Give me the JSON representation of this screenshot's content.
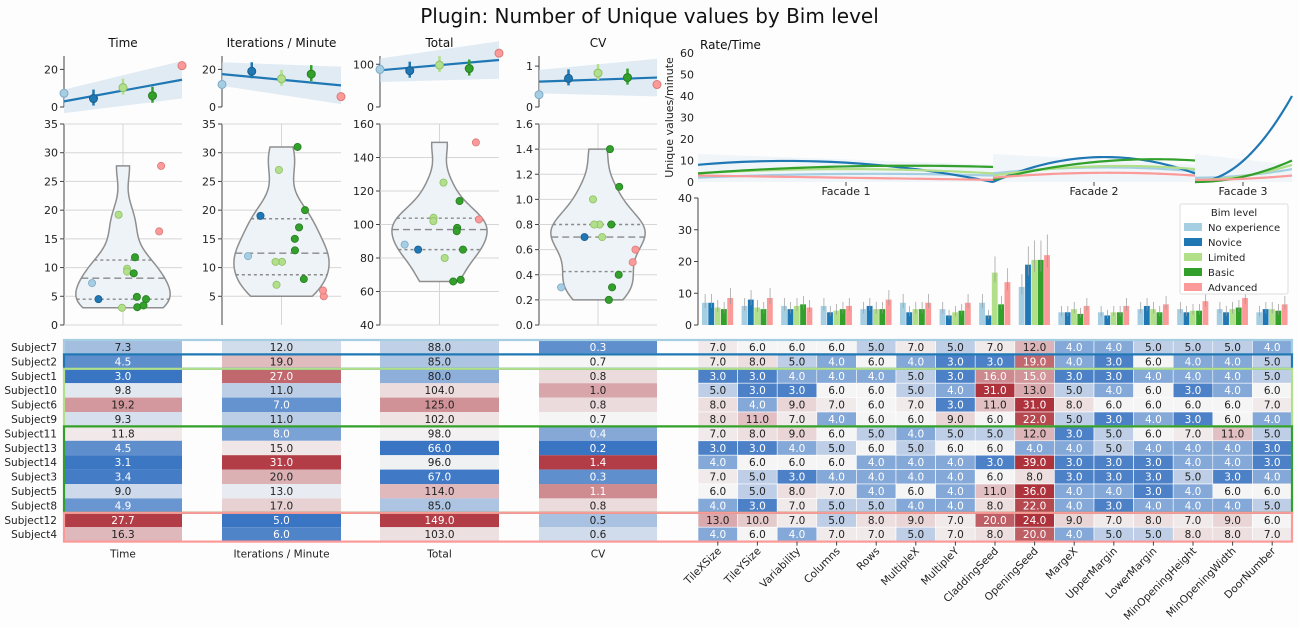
{
  "title": "Plugin: Number of Unique values by Bim level",
  "colors": {
    "No experience": "#a6cee3",
    "Novice": "#1f78b4",
    "Limited": "#b2df8a",
    "Basic": "#33a02c",
    "Advanced": "#fb9a99"
  },
  "chart_data": [
    {
      "type": "scatter",
      "name": "time-top",
      "title": "Time",
      "yticks": [
        "0",
        "20"
      ],
      "ylim": [
        0,
        25
      ],
      "means": [
        {
          "level": "No experience",
          "value": 7.3
        },
        {
          "level": "Novice",
          "value": 4.5
        },
        {
          "level": "Limited",
          "value": 10.3
        },
        {
          "level": "Basic",
          "value": 6.0
        },
        {
          "level": "Advanced",
          "value": 22
        }
      ],
      "fit": [
        3.0,
        14.5
      ]
    },
    {
      "type": "scatter",
      "name": "iter-top",
      "title": "Iterations / Minute",
      "yticks": [
        "0",
        "20"
      ],
      "ylim": [
        0,
        25
      ],
      "means": [
        {
          "level": "No experience",
          "value": 12.0
        },
        {
          "level": "Novice",
          "value": 19.0
        },
        {
          "level": "Limited",
          "value": 15.0
        },
        {
          "level": "Basic",
          "value": 17.5
        },
        {
          "level": "Advanced",
          "value": 5.5
        }
      ],
      "fit": [
        17.5,
        11.5
      ]
    },
    {
      "type": "scatter",
      "name": "total-top",
      "title": "Total",
      "yticks": [
        "0",
        "100"
      ],
      "ylim": [
        0,
        110
      ],
      "means": [
        {
          "level": "No experience",
          "value": 88
        },
        {
          "level": "Novice",
          "value": 85
        },
        {
          "level": "Limited",
          "value": 98
        },
        {
          "level": "Basic",
          "value": 90
        },
        {
          "level": "Advanced",
          "value": 126
        }
      ],
      "fit": [
        86,
        110
      ]
    },
    {
      "type": "scatter",
      "name": "cv-top",
      "title": "CV",
      "yticks": [
        "0",
        "1"
      ],
      "ylim": [
        0,
        1.15
      ],
      "means": [
        {
          "level": "No experience",
          "value": 0.3
        },
        {
          "level": "Novice",
          "value": 0.7
        },
        {
          "level": "Limited",
          "value": 0.83
        },
        {
          "level": "Basic",
          "value": 0.72
        },
        {
          "level": "Advanced",
          "value": 0.55
        }
      ],
      "fit": [
        0.62,
        0.72
      ]
    },
    {
      "type": "violin",
      "name": "time-violin",
      "yticks": [
        "0",
        "5",
        "10",
        "15",
        "20",
        "25",
        "30",
        "35"
      ],
      "ylim": [
        0,
        35
      ],
      "points": [
        {
          "level": "No experience",
          "value": 7.3
        },
        {
          "level": "Novice",
          "value": 4.5
        },
        {
          "level": "Limited",
          "value": 3.0
        },
        {
          "level": "Limited",
          "value": 9.8
        },
        {
          "level": "Limited",
          "value": 19.2
        },
        {
          "level": "Limited",
          "value": 9.3
        },
        {
          "level": "Basic",
          "value": 11.8
        },
        {
          "level": "Basic",
          "value": 4.5
        },
        {
          "level": "Basic",
          "value": 3.1
        },
        {
          "level": "Basic",
          "value": 3.4
        },
        {
          "level": "Basic",
          "value": 9.0
        },
        {
          "level": "Basic",
          "value": 4.9
        },
        {
          "level": "Advanced",
          "value": 27.7
        },
        {
          "level": "Advanced",
          "value": 16.3
        }
      ]
    },
    {
      "type": "violin",
      "name": "iter-violin",
      "yticks": [
        "5",
        "10",
        "15",
        "20",
        "25",
        "30",
        "35"
      ],
      "ylim": [
        0,
        35
      ],
      "points": [
        {
          "level": "No experience",
          "value": 12.0
        },
        {
          "level": "Novice",
          "value": 19.0
        },
        {
          "level": "Limited",
          "value": 27.0
        },
        {
          "level": "Limited",
          "value": 11.0
        },
        {
          "level": "Limited",
          "value": 7.0
        },
        {
          "level": "Limited",
          "value": 11.0
        },
        {
          "level": "Basic",
          "value": 8.0
        },
        {
          "level": "Basic",
          "value": 15.0
        },
        {
          "level": "Basic",
          "value": 31.0
        },
        {
          "level": "Basic",
          "value": 20.0
        },
        {
          "level": "Basic",
          "value": 13.0
        },
        {
          "level": "Basic",
          "value": 17.0
        },
        {
          "level": "Advanced",
          "value": 5.0
        },
        {
          "level": "Advanced",
          "value": 6.0
        }
      ]
    },
    {
      "type": "violin",
      "name": "total-violin",
      "yticks": [
        "40",
        "60",
        "80",
        "100",
        "120",
        "140",
        "160"
      ],
      "ylim": [
        40,
        160
      ],
      "points": [
        {
          "level": "No experience",
          "value": 88
        },
        {
          "level": "Novice",
          "value": 85
        },
        {
          "level": "Limited",
          "value": 80
        },
        {
          "level": "Limited",
          "value": 104
        },
        {
          "level": "Limited",
          "value": 125
        },
        {
          "level": "Limited",
          "value": 102
        },
        {
          "level": "Basic",
          "value": 98
        },
        {
          "level": "Basic",
          "value": 66
        },
        {
          "level": "Basic",
          "value": 96
        },
        {
          "level": "Basic",
          "value": 67
        },
        {
          "level": "Basic",
          "value": 114
        },
        {
          "level": "Basic",
          "value": 85
        },
        {
          "level": "Advanced",
          "value": 149
        },
        {
          "level": "Advanced",
          "value": 103
        }
      ]
    },
    {
      "type": "violin",
      "name": "cv-violin",
      "yticks": [
        "0.0",
        "0.2",
        "0.4",
        "0.6",
        "0.8",
        "1.0",
        "1.2",
        "1.4",
        "1.6"
      ],
      "ylim": [
        0,
        1.6
      ],
      "points": [
        {
          "level": "No experience",
          "value": 0.3
        },
        {
          "level": "Novice",
          "value": 0.7
        },
        {
          "level": "Limited",
          "value": 0.8
        },
        {
          "level": "Limited",
          "value": 1.0
        },
        {
          "level": "Limited",
          "value": 0.8
        },
        {
          "level": "Limited",
          "value": 0.7
        },
        {
          "level": "Basic",
          "value": 0.4
        },
        {
          "level": "Basic",
          "value": 0.2
        },
        {
          "level": "Basic",
          "value": 1.4
        },
        {
          "level": "Basic",
          "value": 0.3
        },
        {
          "level": "Basic",
          "value": 1.1
        },
        {
          "level": "Basic",
          "value": 0.8
        },
        {
          "level": "Advanced",
          "value": 0.5
        },
        {
          "level": "Advanced",
          "value": 0.6
        }
      ]
    },
    {
      "type": "line",
      "name": "rate-time",
      "title": "Rate/Time",
      "ylabel": "Unique values/minute",
      "yticks": [
        "0",
        "10",
        "20",
        "30",
        "40",
        "50",
        "60"
      ],
      "ylim": [
        0,
        60
      ],
      "categories": [
        "Facade 1",
        "Facade 2",
        "Facade 3"
      ]
    },
    {
      "type": "bar",
      "name": "params-bar",
      "yticks": [
        "0",
        "10",
        "20",
        "30",
        "40"
      ],
      "ylim": [
        0,
        40
      ],
      "categories": [
        "TileXSize",
        "TileYSize",
        "Variability",
        "Columns",
        "Rows",
        "MultipleX",
        "MultipleY",
        "CladdingSeed",
        "OpeningSeed",
        "MargeX",
        "UpperMargin",
        "LowerMargin",
        "MinOpeningHeight",
        "MinOpeningWidth",
        "DoorNumber"
      ],
      "legend_title": "Bim level",
      "legend_position": "upper-right",
      "series": [
        {
          "name": "No experience",
          "values": [
            7.0,
            6.0,
            6.0,
            6.0,
            5.0,
            7.0,
            5.0,
            7.0,
            12.0,
            4.0,
            4.0,
            5.0,
            5.0,
            5.0,
            4.0
          ]
        },
        {
          "name": "Novice",
          "values": [
            7.0,
            8.0,
            5.0,
            4.0,
            6.0,
            4.0,
            3.0,
            3.0,
            19.0,
            4.0,
            3.0,
            6.0,
            4.0,
            4.0,
            5.0
          ]
        },
        {
          "name": "Limited",
          "values": [
            5.5,
            5.5,
            6.0,
            4.5,
            5.0,
            5.0,
            4.0,
            16.5,
            20.5,
            5.0,
            4.0,
            5.0,
            4.5,
            5.0,
            5.0
          ]
        },
        {
          "name": "Basic",
          "values": [
            5.0,
            5.0,
            6.5,
            5.0,
            5.0,
            5.0,
            4.5,
            6.5,
            20.5,
            3.5,
            4.0,
            4.0,
            4.5,
            5.5,
            4.5
          ]
        },
        {
          "name": "Advanced",
          "values": [
            8.5,
            8.5,
            5.5,
            6.0,
            8.0,
            7.0,
            7.0,
            13.5,
            22.0,
            6.0,
            6.0,
            6.5,
            7.5,
            8.5,
            6.5
          ]
        }
      ]
    },
    {
      "type": "table",
      "name": "heat-table",
      "row_labels": [
        "Subject7",
        "Subject2",
        "Subject1",
        "Subject10",
        "Subject6",
        "Subject9",
        "Subject11",
        "Subject13",
        "Subject14",
        "Subject3",
        "Subject5",
        "Subject8",
        "Subject12",
        "Subject4"
      ],
      "row_levels": [
        "No experience",
        "Novice",
        "Limited",
        "Limited",
        "Limited",
        "Limited",
        "Basic",
        "Basic",
        "Basic",
        "Basic",
        "Basic",
        "Basic",
        "Advanced",
        "Advanced"
      ],
      "metric_labels": [
        "Time",
        "Iterations / Minute",
        "Total",
        "CV"
      ],
      "metrics": [
        [
          7.3,
          12.0,
          88.0,
          0.3
        ],
        [
          4.5,
          19.0,
          85.0,
          0.7
        ],
        [
          3.0,
          27.0,
          80.0,
          0.8
        ],
        [
          9.8,
          11.0,
          104.0,
          1.0
        ],
        [
          19.2,
          7.0,
          125.0,
          0.8
        ],
        [
          9.3,
          11.0,
          102.0,
          0.7
        ],
        [
          11.8,
          8.0,
          98.0,
          0.4
        ],
        [
          4.5,
          15.0,
          66.0,
          0.2
        ],
        [
          3.1,
          31.0,
          96.0,
          1.4
        ],
        [
          3.4,
          20.0,
          67.0,
          0.3
        ],
        [
          9.0,
          13.0,
          114.0,
          1.1
        ],
        [
          4.9,
          17.0,
          85.0,
          0.8
        ],
        [
          27.7,
          5.0,
          149.0,
          0.5
        ],
        [
          16.3,
          6.0,
          103.0,
          0.6
        ]
      ],
      "param_labels": [
        "TileXSize",
        "TileYSize",
        "Variability",
        "Columns",
        "Rows",
        "MultipleX",
        "MultipleY",
        "CladdingSeed",
        "OpeningSeed",
        "MargeX",
        "UpperMargin",
        "LowerMargin",
        "MinOpeningHeight",
        "MinOpeningWidth",
        "DoorNumber"
      ],
      "params": [
        [
          7,
          6,
          6,
          6,
          5,
          7,
          5,
          7,
          12,
          4,
          4,
          5,
          5,
          5,
          4
        ],
        [
          7,
          8,
          5,
          4,
          6,
          4,
          3,
          3,
          19,
          4,
          3,
          6,
          4,
          4,
          5
        ],
        [
          3,
          3,
          4,
          4,
          4,
          5,
          3,
          16,
          15,
          3,
          3,
          4,
          4,
          4,
          5
        ],
        [
          5,
          3,
          3,
          6,
          6,
          5,
          4,
          31,
          13,
          5,
          4,
          6,
          3,
          4,
          6
        ],
        [
          8,
          4,
          9,
          7,
          6,
          7,
          3,
          11,
          31,
          8,
          6,
          6,
          6,
          6,
          7
        ],
        [
          8,
          11,
          7,
          4,
          6,
          6,
          9,
          6,
          22,
          5,
          3,
          4,
          3,
          6,
          4
        ],
        [
          7,
          8,
          9,
          6,
          5,
          4,
          5,
          5,
          12,
          3,
          5,
          6,
          7,
          11,
          5
        ],
        [
          3,
          3,
          4,
          5,
          6,
          5,
          6,
          6,
          4,
          4,
          5,
          4,
          4,
          4,
          3
        ],
        [
          4,
          6,
          6,
          6,
          4,
          4,
          4,
          3,
          39,
          3,
          3,
          3,
          4,
          4,
          3
        ],
        [
          7,
          5,
          3,
          4,
          4,
          4,
          4,
          6,
          8,
          3,
          3,
          3,
          5,
          3,
          4
        ],
        [
          6,
          5,
          8,
          7,
          4,
          6,
          4,
          11,
          36,
          4,
          4,
          3,
          4,
          6,
          6
        ],
        [
          4,
          3,
          7,
          5,
          5,
          4,
          4,
          8,
          22,
          4,
          3,
          4,
          4,
          4,
          5
        ],
        [
          13,
          10,
          7,
          5,
          8,
          9,
          7,
          20,
          24,
          9,
          7,
          8,
          7,
          9,
          6
        ],
        [
          4,
          6,
          4,
          7,
          7,
          5,
          7,
          8,
          20,
          4,
          5,
          5,
          8,
          8,
          7
        ]
      ]
    }
  ]
}
